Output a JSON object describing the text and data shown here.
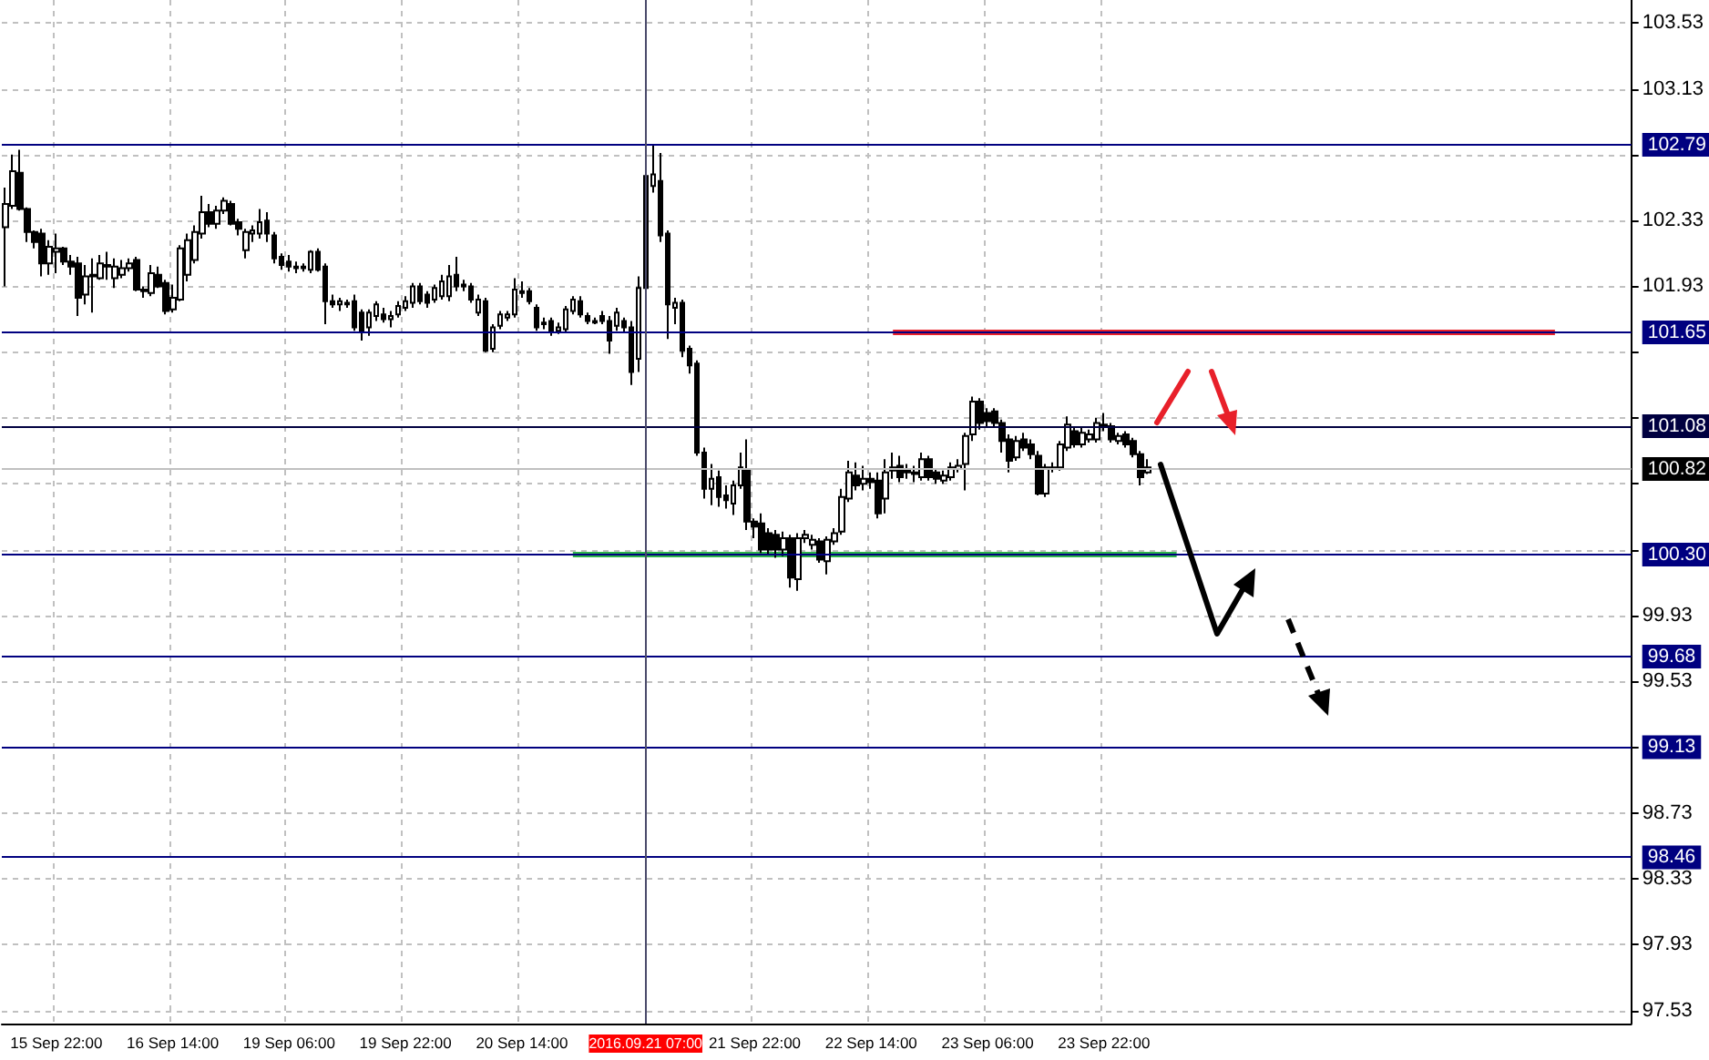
{
  "chart_data": {
    "type": "candlestick",
    "categories": [
      null,
      null,
      null,
      null,
      null,
      null,
      null,
      "15 Sep 22:00",
      null,
      null,
      null,
      null,
      null,
      null,
      null,
      null,
      null,
      null,
      null,
      null,
      null,
      null,
      null,
      "16 Sep 14:00",
      null,
      null,
      null,
      null,
      null,
      null,
      null,
      null,
      null,
      null,
      null,
      null,
      null,
      null,
      null,
      "19 Sep 06:00",
      null,
      null,
      null,
      null,
      null,
      null,
      null,
      null,
      null,
      null,
      null,
      null,
      null,
      null,
      null,
      "19 Sep 22:00",
      null,
      null,
      null,
      null,
      null,
      null,
      null,
      null,
      null,
      null,
      null,
      null,
      null,
      null,
      null,
      "20 Sep 14:00",
      null,
      null,
      null,
      null,
      null,
      null,
      null,
      null,
      null,
      null,
      null,
      null,
      null,
      null,
      null,
      null,
      "2016.09.21 07:00",
      null,
      null,
      null,
      null,
      null,
      null,
      null,
      null,
      null,
      null,
      null,
      null,
      null,
      null,
      "21 Sep 22:00",
      null,
      null,
      null,
      null,
      null,
      null,
      null,
      null,
      null,
      null,
      null,
      null,
      null,
      null,
      null,
      "22 Sep 14:00",
      null,
      null,
      null,
      null,
      null,
      null,
      null,
      null,
      null,
      null,
      null,
      null,
      null,
      null,
      null,
      "23 Sep 06:00",
      null,
      null,
      null,
      null,
      null,
      null,
      null,
      null,
      null,
      null,
      null,
      null,
      null,
      null,
      null,
      "23 Sep 22:00",
      null,
      null,
      null,
      null,
      null,
      null,
      null,
      null,
      null,
      null,
      null,
      null,
      null,
      null,
      null,
      null,
      null,
      null,
      null,
      null,
      null,
      null,
      null,
      null,
      null,
      null,
      null,
      null,
      null,
      null,
      null,
      null,
      null,
      null,
      null,
      null,
      null,
      null,
      null,
      null,
      null,
      null,
      null,
      null,
      null,
      null,
      null,
      null,
      null,
      null,
      null,
      null,
      null,
      null,
      null,
      null,
      null,
      null,
      null,
      null,
      null,
      null,
      null,
      null,
      null,
      null,
      null,
      null,
      null,
      null,
      null,
      null
    ],
    "ohlc": [
      [
        102.29,
        102.53,
        101.93,
        102.43
      ],
      [
        102.42,
        102.73,
        102.4,
        102.63
      ],
      [
        102.62,
        102.76,
        102.39,
        102.4
      ],
      [
        102.4,
        102.41,
        102.2,
        102.26
      ],
      [
        102.26,
        102.27,
        102.16,
        102.2
      ],
      [
        102.25,
        102.28,
        101.99,
        102.07
      ],
      [
        102.07,
        102.21,
        102.0,
        102.17
      ],
      [
        102.14,
        102.25,
        102.01,
        102.16
      ],
      [
        102.16,
        102.17,
        102.06,
        102.08
      ],
      [
        102.08,
        102.12,
        102.0,
        102.05
      ],
      [
        102.07,
        102.11,
        101.75,
        101.86
      ],
      [
        101.88,
        102.06,
        101.82,
        101.99
      ],
      [
        101.99,
        102.1,
        101.77,
        102.0
      ],
      [
        101.98,
        102.12,
        101.97,
        102.07
      ],
      [
        102.06,
        102.14,
        101.97,
        102.05
      ],
      [
        101.98,
        102.1,
        101.92,
        102.05
      ],
      [
        102.0,
        102.09,
        101.98,
        102.04
      ],
      [
        102.04,
        102.1,
        102.02,
        102.07
      ],
      [
        102.09,
        102.11,
        101.9,
        101.91
      ],
      [
        101.91,
        101.93,
        101.86,
        101.9
      ],
      [
        101.89,
        102.06,
        101.87,
        102.01
      ],
      [
        102.0,
        102.05,
        101.92,
        101.93
      ],
      [
        101.95,
        101.97,
        101.76,
        101.78
      ],
      [
        101.79,
        101.94,
        101.77,
        101.86
      ],
      [
        101.85,
        102.18,
        101.84,
        102.16
      ],
      [
        102.0,
        102.25,
        101.96,
        102.21
      ],
      [
        102.09,
        102.3,
        102.07,
        102.26
      ],
      [
        102.25,
        102.48,
        102.22,
        102.38
      ],
      [
        102.38,
        102.43,
        102.29,
        102.31
      ],
      [
        102.31,
        102.42,
        102.28,
        102.39
      ],
      [
        102.39,
        102.47,
        102.37,
        102.45
      ],
      [
        102.43,
        102.45,
        102.3,
        102.31
      ],
      [
        102.32,
        102.34,
        102.24,
        102.28
      ],
      [
        102.15,
        102.28,
        102.1,
        102.26
      ],
      [
        102.25,
        102.3,
        102.2,
        102.27
      ],
      [
        102.25,
        102.4,
        102.22,
        102.32
      ],
      [
        102.33,
        102.38,
        102.2,
        102.25
      ],
      [
        102.24,
        102.26,
        102.07,
        102.1
      ],
      [
        102.11,
        102.13,
        102.03,
        102.06
      ],
      [
        102.08,
        102.12,
        102.02,
        102.05
      ],
      [
        102.05,
        102.08,
        102.01,
        102.04
      ],
      [
        102.04,
        102.07,
        102.02,
        102.05
      ],
      [
        102.03,
        102.15,
        102.01,
        102.14
      ],
      [
        102.14,
        102.16,
        102.02,
        102.03
      ],
      [
        102.05,
        102.07,
        101.7,
        101.84
      ],
      [
        101.84,
        101.88,
        101.8,
        101.82
      ],
      [
        101.82,
        101.86,
        101.78,
        101.84
      ],
      [
        101.83,
        101.85,
        101.8,
        101.82
      ],
      [
        101.84,
        101.88,
        101.66,
        101.68
      ],
      [
        101.77,
        101.79,
        101.6,
        101.65
      ],
      [
        101.68,
        101.79,
        101.63,
        101.77
      ],
      [
        101.75,
        101.84,
        101.72,
        101.82
      ],
      [
        101.76,
        101.8,
        101.71,
        101.73
      ],
      [
        101.73,
        101.78,
        101.68,
        101.75
      ],
      [
        101.76,
        101.84,
        101.74,
        101.81
      ],
      [
        101.8,
        101.87,
        101.78,
        101.84
      ],
      [
        101.83,
        101.95,
        101.8,
        101.93
      ],
      [
        101.93,
        101.95,
        101.82,
        101.84
      ],
      [
        101.88,
        101.9,
        101.8,
        101.83
      ],
      [
        101.85,
        101.94,
        101.83,
        101.92
      ],
      [
        101.87,
        102.0,
        101.85,
        101.96
      ],
      [
        101.87,
        102.06,
        101.84,
        101.99
      ],
      [
        102.0,
        102.11,
        101.9,
        101.93
      ],
      [
        101.94,
        101.97,
        101.9,
        101.93
      ],
      [
        101.93,
        101.95,
        101.83,
        101.85
      ],
      [
        101.77,
        101.88,
        101.75,
        101.85
      ],
      [
        101.84,
        101.86,
        101.53,
        101.54
      ],
      [
        101.55,
        101.7,
        101.53,
        101.68
      ],
      [
        101.69,
        101.78,
        101.67,
        101.76
      ],
      [
        101.74,
        101.78,
        101.72,
        101.76
      ],
      [
        101.76,
        101.98,
        101.74,
        101.91
      ],
      [
        101.9,
        101.96,
        101.86,
        101.89
      ],
      [
        101.9,
        101.92,
        101.82,
        101.84
      ],
      [
        101.8,
        101.82,
        101.66,
        101.68
      ],
      [
        101.71,
        101.74,
        101.67,
        101.7
      ],
      [
        101.72,
        101.74,
        101.63,
        101.65
      ],
      [
        101.66,
        101.71,
        101.64,
        101.68
      ],
      [
        101.67,
        101.81,
        101.65,
        101.79
      ],
      [
        101.78,
        101.87,
        101.76,
        101.85
      ],
      [
        101.84,
        101.87,
        101.74,
        101.76
      ],
      [
        101.75,
        101.77,
        101.7,
        101.72
      ],
      [
        101.71,
        101.74,
        101.7,
        101.72
      ],
      [
        101.75,
        101.78,
        101.7,
        101.72
      ],
      [
        101.72,
        101.75,
        101.52,
        101.6
      ],
      [
        101.69,
        101.8,
        101.66,
        101.77
      ],
      [
        101.72,
        101.74,
        101.65,
        101.68
      ],
      [
        101.68,
        101.72,
        101.33,
        101.41
      ],
      [
        101.49,
        101.99,
        101.41,
        101.92
      ],
      [
        101.92,
        102.62,
        101.9,
        102.6
      ],
      [
        102.54,
        102.79,
        102.5,
        102.61
      ],
      [
        102.57,
        102.74,
        102.2,
        102.24
      ],
      [
        102.25,
        102.27,
        101.61,
        101.82
      ],
      [
        101.8,
        101.86,
        101.7,
        101.83
      ],
      [
        101.83,
        101.85,
        101.5,
        101.54
      ],
      [
        101.55,
        101.57,
        101.4,
        101.45
      ],
      [
        101.46,
        101.48,
        100.9,
        100.92
      ],
      [
        100.92,
        100.95,
        100.64,
        100.7
      ],
      [
        100.7,
        100.85,
        100.6,
        100.76
      ],
      [
        100.77,
        100.81,
        100.59,
        100.65
      ],
      [
        100.66,
        100.72,
        100.58,
        100.63
      ],
      [
        100.61,
        100.75,
        100.54,
        100.72
      ],
      [
        100.72,
        100.92,
        100.7,
        100.83
      ],
      [
        100.82,
        101.0,
        100.45,
        100.5
      ],
      [
        100.5,
        100.52,
        100.4,
        100.47
      ],
      [
        100.49,
        100.55,
        100.31,
        100.33
      ],
      [
        100.43,
        100.46,
        100.3,
        100.33
      ],
      [
        100.42,
        100.45,
        100.28,
        100.33
      ],
      [
        100.33,
        100.44,
        100.29,
        100.4
      ],
      [
        100.4,
        100.42,
        100.1,
        100.16
      ],
      [
        100.15,
        100.43,
        100.08,
        100.4
      ],
      [
        100.4,
        100.45,
        100.37,
        100.42
      ],
      [
        100.36,
        100.42,
        100.33,
        100.39
      ],
      [
        100.38,
        100.4,
        100.25,
        100.27
      ],
      [
        100.26,
        100.41,
        100.18,
        100.39
      ],
      [
        100.38,
        100.46,
        100.36,
        100.43
      ],
      [
        100.44,
        100.7,
        100.42,
        100.65
      ],
      [
        100.64,
        100.87,
        100.62,
        100.8
      ],
      [
        100.78,
        100.86,
        100.69,
        100.72
      ],
      [
        100.73,
        100.84,
        100.69,
        100.76
      ],
      [
        100.76,
        100.8,
        100.7,
        100.74
      ],
      [
        100.75,
        100.8,
        100.52,
        100.55
      ],
      [
        100.64,
        100.88,
        100.55,
        100.8
      ],
      [
        100.81,
        100.92,
        100.76,
        100.83
      ],
      [
        100.84,
        100.9,
        100.74,
        100.77
      ],
      [
        100.8,
        100.85,
        100.76,
        100.81
      ],
      [
        100.8,
        100.84,
        100.74,
        100.79
      ],
      [
        100.77,
        100.92,
        100.75,
        100.88
      ],
      [
        100.88,
        100.9,
        100.75,
        100.77
      ],
      [
        100.8,
        100.82,
        100.73,
        100.76
      ],
      [
        100.75,
        100.81,
        100.73,
        100.78
      ],
      [
        100.77,
        100.86,
        100.75,
        100.83
      ],
      [
        100.82,
        100.88,
        100.8,
        100.84
      ],
      [
        100.85,
        101.04,
        100.69,
        101.02
      ],
      [
        101.03,
        101.26,
        100.99,
        101.23
      ],
      [
        101.23,
        101.25,
        101.06,
        101.1
      ],
      [
        101.16,
        101.19,
        101.07,
        101.11
      ],
      [
        101.17,
        101.19,
        101.07,
        101.1
      ],
      [
        101.1,
        101.12,
        100.92,
        100.99
      ],
      [
        101.0,
        101.03,
        100.8,
        100.87
      ],
      [
        100.89,
        101.02,
        100.87,
        100.99
      ],
      [
        101.0,
        101.04,
        100.93,
        100.95
      ],
      [
        100.97,
        101.0,
        100.88,
        100.91
      ],
      [
        100.9,
        100.93,
        100.66,
        100.67
      ],
      [
        100.67,
        100.85,
        100.65,
        100.83
      ],
      [
        100.83,
        100.86,
        100.8,
        100.82
      ],
      [
        100.83,
        100.99,
        100.81,
        100.97
      ],
      [
        100.95,
        101.14,
        100.93,
        101.09
      ],
      [
        101.05,
        101.08,
        100.95,
        100.97
      ],
      [
        100.97,
        101.08,
        100.95,
        101.04
      ],
      [
        101.0,
        101.06,
        100.98,
        101.03
      ],
      [
        101.0,
        101.13,
        100.98,
        101.1
      ],
      [
        101.08,
        101.16,
        101.05,
        101.09
      ],
      [
        101.08,
        101.1,
        100.98,
        101.0
      ],
      [
        100.99,
        101.04,
        100.97,
        101.02
      ],
      [
        101.03,
        101.05,
        100.95,
        100.97
      ],
      [
        100.99,
        101.01,
        100.89,
        100.91
      ],
      [
        100.91,
        100.93,
        100.72,
        100.77
      ],
      [
        100.8,
        100.88,
        100.79,
        100.83
      ],
      null,
      null,
      null,
      null,
      null,
      null,
      null,
      null,
      null,
      null,
      null,
      null,
      null,
      null,
      null,
      null,
      null,
      null,
      null,
      null,
      null,
      null,
      null,
      null,
      null,
      null,
      null,
      null,
      null,
      null,
      null,
      null,
      null,
      null,
      null,
      null,
      null,
      null,
      null,
      null,
      null,
      null,
      null,
      null,
      null,
      null,
      null,
      null,
      null,
      null,
      null,
      null,
      null,
      null,
      null,
      null,
      null,
      null,
      null,
      null,
      null,
      null,
      null,
      null,
      null,
      null
    ],
    "series": [
      {
        "type": "line",
        "color": "#e8202a",
        "values": [
          null,
          null,
          null,
          null,
          null,
          null,
          null,
          null,
          null,
          null,
          null,
          null,
          null,
          null,
          null,
          null,
          null,
          null,
          null,
          null,
          null,
          null,
          null,
          null,
          null,
          null,
          null,
          null,
          null,
          null,
          null,
          null,
          null,
          null,
          null,
          null,
          null,
          null,
          null,
          null,
          null,
          null,
          null,
          null,
          null,
          null,
          null,
          null,
          null,
          null,
          null,
          null,
          null,
          null,
          null,
          null,
          null,
          null,
          null,
          null,
          null,
          null,
          null,
          null,
          null,
          null,
          null,
          null,
          null,
          null,
          null,
          null,
          null,
          null,
          null,
          null,
          null,
          null,
          null,
          null,
          null,
          null,
          null,
          null,
          null,
          null,
          null,
          null,
          null,
          null,
          null,
          null,
          null,
          null,
          null,
          null,
          null,
          null,
          null,
          null,
          null,
          null,
          null,
          null,
          null,
          null,
          null,
          null,
          null,
          null,
          null,
          null,
          null,
          null,
          null,
          null,
          null,
          null,
          null,
          null,
          null,
          null,
          101.65,
          101.65,
          101.65,
          101.65,
          101.65,
          101.65,
          101.65,
          101.65,
          101.65,
          101.65,
          101.65,
          101.65,
          101.65,
          101.65,
          101.65,
          101.65,
          101.65,
          101.65,
          101.65,
          101.65,
          101.65,
          101.65,
          101.65,
          101.65,
          101.65,
          101.65,
          101.65,
          101.65,
          101.65,
          101.65,
          101.65,
          101.65,
          101.65,
          101.65,
          101.65,
          101.65,
          101.65,
          101.65,
          101.65,
          101.65,
          101.65,
          101.65,
          101.65,
          101.65,
          101.65,
          101.65,
          101.65,
          101.65,
          101.65,
          101.65,
          101.65,
          101.65,
          101.65,
          101.65,
          101.65,
          101.65,
          101.65,
          101.65,
          101.65,
          101.65,
          101.65,
          101.65,
          101.65,
          101.65,
          101.65,
          101.65,
          101.65,
          101.65,
          101.65,
          101.65,
          101.65,
          101.65,
          101.65,
          101.65,
          101.65,
          101.65,
          101.65,
          101.65,
          101.65,
          101.65,
          101.65,
          101.65,
          101.65,
          101.65,
          101.65,
          101.65,
          101.65,
          101.65,
          101.65,
          101.65,
          101.65,
          101.65,
          null,
          null,
          null,
          null,
          null,
          null,
          null,
          null,
          null,
          null
        ]
      },
      {
        "type": "line",
        "color": "#2db34a",
        "values": [
          null,
          null,
          null,
          null,
          null,
          null,
          null,
          null,
          null,
          null,
          null,
          null,
          null,
          null,
          null,
          null,
          null,
          null,
          null,
          null,
          null,
          null,
          null,
          null,
          null,
          null,
          null,
          null,
          null,
          null,
          null,
          null,
          null,
          null,
          null,
          null,
          null,
          null,
          null,
          null,
          null,
          null,
          null,
          null,
          null,
          null,
          null,
          null,
          null,
          null,
          null,
          null,
          null,
          null,
          null,
          null,
          null,
          null,
          null,
          null,
          null,
          null,
          null,
          null,
          null,
          null,
          null,
          null,
          null,
          null,
          null,
          null,
          null,
          null,
          null,
          null,
          null,
          null,
          100.3,
          100.3,
          100.3,
          100.3,
          100.3,
          100.3,
          100.3,
          100.3,
          100.3,
          100.3,
          100.3,
          100.3,
          100.3,
          100.3,
          100.3,
          100.3,
          100.3,
          100.3,
          100.3,
          100.3,
          100.3,
          100.3,
          100.3,
          100.3,
          100.3,
          100.3,
          100.3,
          100.3,
          100.3,
          100.3,
          100.3,
          100.3,
          100.3,
          100.3,
          100.3,
          100.3,
          100.3,
          100.3,
          100.3,
          100.3,
          100.3,
          100.3,
          100.3,
          100.3,
          100.3,
          100.3,
          100.3,
          100.3,
          100.3,
          100.3,
          100.3,
          100.3,
          100.3,
          100.3,
          100.3,
          100.3,
          100.3,
          100.3,
          100.3,
          100.3,
          100.3,
          100.3,
          100.3,
          100.3,
          100.3,
          100.3,
          100.3,
          100.3,
          100.3,
          100.3,
          100.3,
          100.3,
          100.3,
          100.3,
          100.3,
          100.3,
          100.3,
          100.3,
          100.3,
          100.3,
          100.3,
          100.3,
          100.3,
          100.3,
          null,
          null,
          null,
          null,
          null,
          null,
          null,
          null,
          null,
          null,
          null,
          null,
          null,
          null,
          null,
          null,
          null,
          null,
          null,
          null,
          null,
          null,
          null,
          null,
          null,
          null,
          null,
          null,
          null,
          null,
          null,
          null,
          null,
          null,
          null,
          null,
          null,
          null,
          null,
          null,
          null,
          null,
          null,
          null,
          null,
          null,
          null,
          null,
          null,
          null,
          null,
          null,
          null,
          null,
          null,
          null,
          null,
          null,
          null,
          null,
          null,
          null
        ]
      }
    ],
    "ylim": [
      97.45,
      103.67
    ],
    "yticks": [
      97.53,
      97.93,
      98.33,
      98.73,
      99.13,
      99.53,
      99.93,
      {
        "value": 100.33,
        "label": null
      },
      {
        "value": 100.73,
        "label": null
      },
      {
        "value": 101.13,
        "label": null
      },
      {
        "value": 101.53,
        "label": null
      },
      101.93,
      102.33,
      {
        "value": 102.73,
        "label": null
      },
      103.13,
      103.53
    ],
    "ref_lines": [
      {
        "axis": "y",
        "value": 102.79,
        "label": "102.79",
        "color": "#000080"
      },
      {
        "axis": "y",
        "value": 101.65,
        "label": "101.65",
        "color": "#000080"
      },
      {
        "axis": "y",
        "value": 101.08,
        "label": "101.08",
        "color": "#000040"
      },
      {
        "axis": "y",
        "value": 100.82,
        "label": "100.82",
        "color": "#c0c0c0"
      },
      {
        "axis": "y",
        "value": 100.3,
        "label": "100.30",
        "color": "#000080"
      },
      {
        "axis": "y",
        "value": 99.68,
        "label": "99.68",
        "color": "#000080"
      },
      {
        "axis": "y",
        "value": 99.13,
        "label": "99.13",
        "color": "#000080"
      },
      {
        "axis": "y",
        "value": 98.46,
        "label": "98.46",
        "color": "#000080"
      },
      {
        "axis": "x",
        "value": "2016.09.21 07:00",
        "color": "#4a4a6a"
      }
    ],
    "grid": true,
    "marker": "none"
  }
}
